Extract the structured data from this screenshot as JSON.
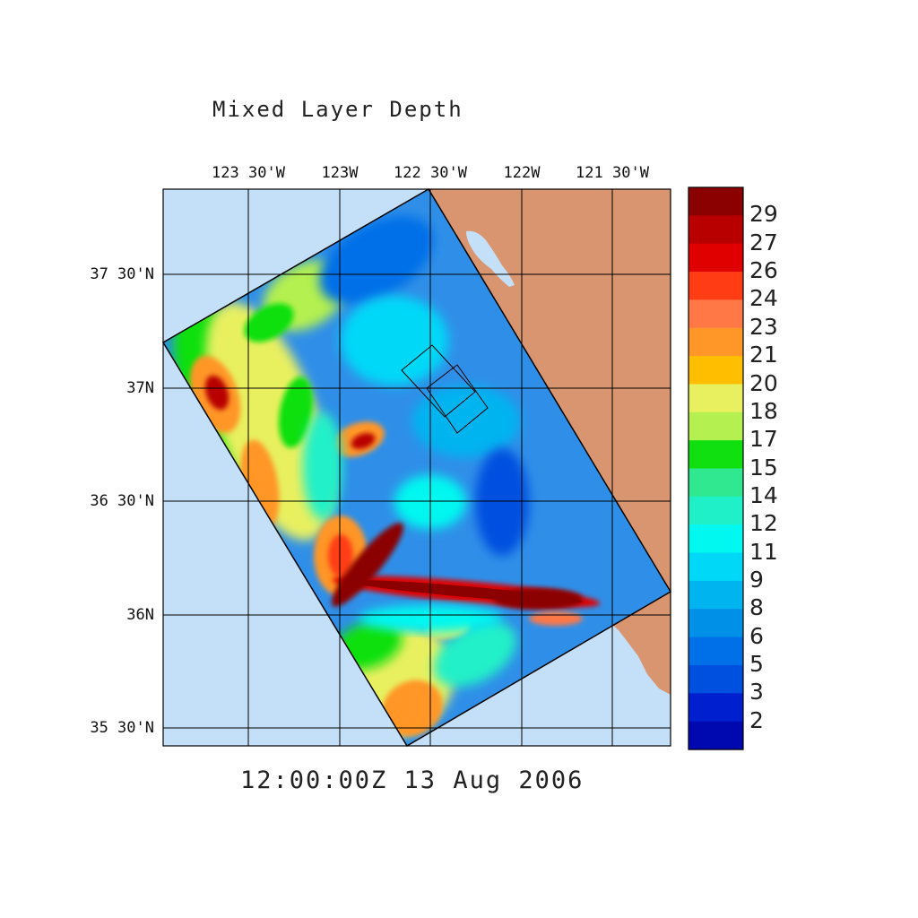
{
  "title": "Mixed Layer Depth",
  "timestamp": "12:00:00Z  13 Aug 2006",
  "lon_labels": [
    "123 30'W",
    "123W",
    "122 30'W",
    "122W",
    "121 30'W"
  ],
  "lat_labels": [
    "37 30'N",
    "37N",
    "36 30'N",
    "36N",
    "35 30'N"
  ],
  "colorbar": {
    "labels": [
      "29",
      "27",
      "26",
      "24",
      "23",
      "21",
      "20",
      "18",
      "17",
      "15",
      "14",
      "12",
      "11",
      "9",
      "8",
      "6",
      "5",
      "3",
      "2"
    ],
    "colors": [
      "#8b0000",
      "#b80000",
      "#e00000",
      "#ff3c14",
      "#ff7846",
      "#ff9628",
      "#ffbe00",
      "#e8f060",
      "#b4f050",
      "#10e010",
      "#30e890",
      "#20f0c8",
      "#00f8f0",
      "#00d8f8",
      "#00b4f0",
      "#0090e8",
      "#0070e8",
      "#0050e0",
      "#0020d0",
      "#0008b0"
    ]
  },
  "map_colors": {
    "ocean_outside": "#c4e0f8",
    "land": "#d99470",
    "domain_base": "#2f8fe8"
  }
}
